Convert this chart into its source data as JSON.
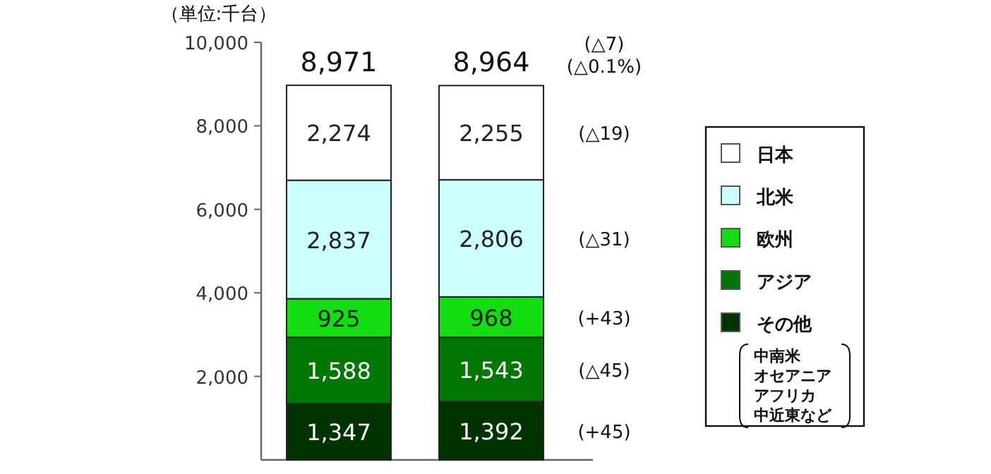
{
  "chart_data": {
    "type": "bar",
    "stacked": true,
    "ylabel": "（単位:千台）",
    "categories": [
      null,
      null
    ],
    "series": [
      {
        "name": "その他",
        "color": "#003300",
        "values": [
          1347,
          1392
        ],
        "value_labels": [
          "1,347",
          "1,392"
        ]
      },
      {
        "name": "アジア",
        "color": "#007700",
        "values": [
          1588,
          1543
        ],
        "value_labels": [
          "1,588",
          "1,543"
        ]
      },
      {
        "name": "欧州",
        "color": "#11dd11",
        "values": [
          925,
          968
        ],
        "value_labels": [
          "925",
          "968"
        ]
      },
      {
        "name": "北米",
        "color": "#ccffff",
        "values": [
          2837,
          2806
        ],
        "value_labels": [
          "2,837",
          "2,806"
        ]
      },
      {
        "name": "日本",
        "color": "#ffffff",
        "values": [
          2274,
          2255
        ],
        "value_labels": [
          "2,274",
          "2,255"
        ]
      }
    ],
    "ylim": [
      0,
      10000
    ],
    "yticks": [
      {
        "value": 2000,
        "label": "2,000"
      },
      {
        "value": 4000,
        "label": "4,000"
      },
      {
        "value": 6000,
        "label": "6,000"
      },
      {
        "value": 8000,
        "label": "8,000"
      },
      {
        "value": 10000,
        "label": "10,000"
      }
    ],
    "totals": [
      "8,971",
      "8,964"
    ],
    "legend": "right",
    "annotations": [
      "(△7)",
      "(△0.1%)",
      "(△19)",
      "(△31)",
      "(+43)",
      "(△45)",
      "(+45)",
      "中南米",
      "オセアニア",
      "アフリカ",
      "中近東など"
    ]
  }
}
